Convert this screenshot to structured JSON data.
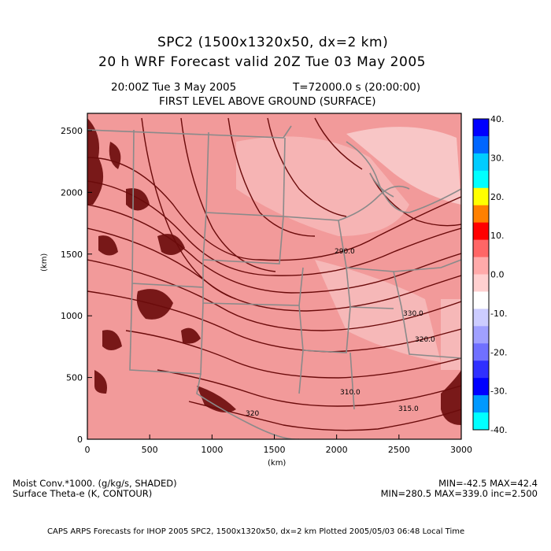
{
  "title": {
    "line1": "SPC2 (1500x1320x50, dx=2 km)",
    "line2": "20 h WRF Forecast valid 20Z Tue 03 May 2005"
  },
  "subtitle": {
    "time": "20:00Z Tue  3 May 2005",
    "seconds": "T=72000.0 s (20:00:00)",
    "level": "FIRST LEVEL ABOVE GROUND (SURFACE)"
  },
  "axes": {
    "x_label": "(km)",
    "y_label": "(km)",
    "x_ticks": [
      "0",
      "500",
      "1000",
      "1500",
      "2000",
      "2500",
      "3000"
    ],
    "y_ticks": [
      "0",
      "500",
      "1000",
      "1500",
      "2000",
      "2500"
    ],
    "x_range": [
      0,
      3000
    ],
    "y_range": [
      0,
      2640
    ]
  },
  "contour_labels": [
    "290.0",
    "330.0",
    "320.0",
    "310.0",
    "315.0",
    "320"
  ],
  "colorbar": {
    "ticks": [
      "40.",
      "30.",
      "20.",
      "10.",
      "0.0",
      "-10.",
      "-20.",
      "-30.",
      "-40."
    ],
    "colors": [
      "#0000ff",
      "#0066ff",
      "#00ccff",
      "#00ffff",
      "#ffff00",
      "#ff8000",
      "#ff0000",
      "#ff6666",
      "#ffaaaa",
      "#ffd0d0",
      "#ffffff",
      "#ccccff",
      "#a0a0ff",
      "#7070ff",
      "#3030ff",
      "#0000ff",
      "#0099ff",
      "#00ffff"
    ]
  },
  "legend": {
    "field1": "Moist Conv.*1000. (g/kg/s, SHADED)",
    "field2": "Surface Theta-e (K, CONTOUR)",
    "minmax1": "MIN=-42.5 MAX=42.4",
    "minmax2": "MIN=280.5 MAX=339.0 inc=2.500"
  },
  "footer": "CAPS ARPS Forecasts for IHOP 2005  SPC2, 1500x1320x50, dx=2 km  Plotted 2005/05/03 06:48 Local Time",
  "colors": {
    "shade": "#f29a9a",
    "shade_light": "#f7c0c0",
    "contour": "#6b0b0b",
    "boundary": "#8a8a8a"
  }
}
